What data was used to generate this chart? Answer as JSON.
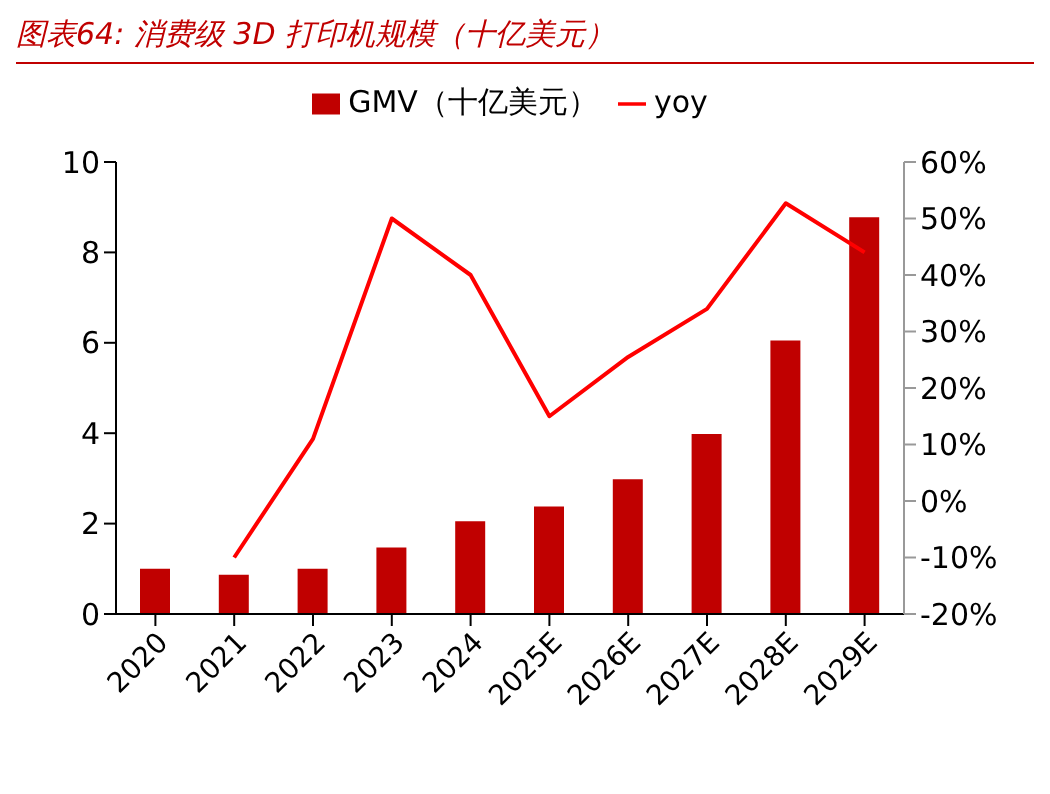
{
  "chart_data": {
    "type": "bar",
    "title": "图表64:  消费级 3D 打印机规模（十亿美元）",
    "categories": [
      "2020",
      "2021",
      "2022",
      "2023",
      "2024",
      "2025E",
      "2026E",
      "2027E",
      "2028E",
      "2029E"
    ],
    "series": [
      {
        "name": "GMV（十亿美元）",
        "color": "#c00000",
        "values": [
          1.0,
          0.87,
          1.0,
          1.47,
          2.05,
          2.38,
          2.98,
          3.98,
          6.05,
          8.78
        ]
      },
      {
        "name": "yoy",
        "type": "line",
        "axis": "y2",
        "color": "#ff0000",
        "values": [
          null,
          -10,
          11,
          50,
          40,
          15,
          25.5,
          34,
          52.7,
          44
        ]
      }
    ],
    "ylim": [
      0,
      10
    ],
    "yticks": [
      0,
      2,
      4,
      6,
      8,
      10
    ],
    "y2lim": [
      -20,
      60
    ],
    "y2ticks": [
      {
        "value": -20,
        "label": "-20%"
      },
      {
        "value": -10,
        "label": "-10%"
      },
      {
        "value": 0,
        "label": "0%"
      },
      {
        "value": 10,
        "label": "10%"
      },
      {
        "value": 20,
        "label": "20%"
      },
      {
        "value": 30,
        "label": "30%"
      },
      {
        "value": 40,
        "label": "40%"
      },
      {
        "value": 50,
        "label": "50%"
      },
      {
        "value": 60,
        "label": "60%"
      }
    ],
    "grid": false,
    "legend": "top",
    "marker": "none",
    "line_style": "solid"
  }
}
